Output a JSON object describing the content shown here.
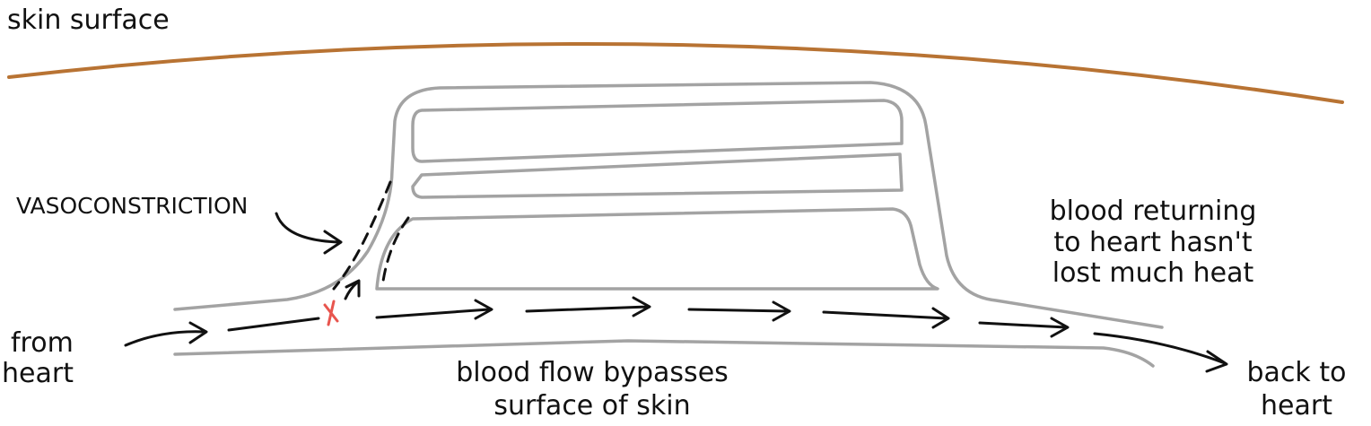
{
  "skin_label": "skin surface",
  "vasoconstriction_label": "VASOCONSTRICTION",
  "from_heart": {
    "lines": [
      "from",
      "heart"
    ]
  },
  "returning_note": {
    "lines": [
      "blood returning",
      "to heart hasn't",
      "lost much heat"
    ]
  },
  "bypass_note": {
    "lines": [
      "blood flow bypasses",
      "surface of skin"
    ]
  },
  "back_to_heart": {
    "lines": [
      "back to",
      "heart"
    ]
  }
}
